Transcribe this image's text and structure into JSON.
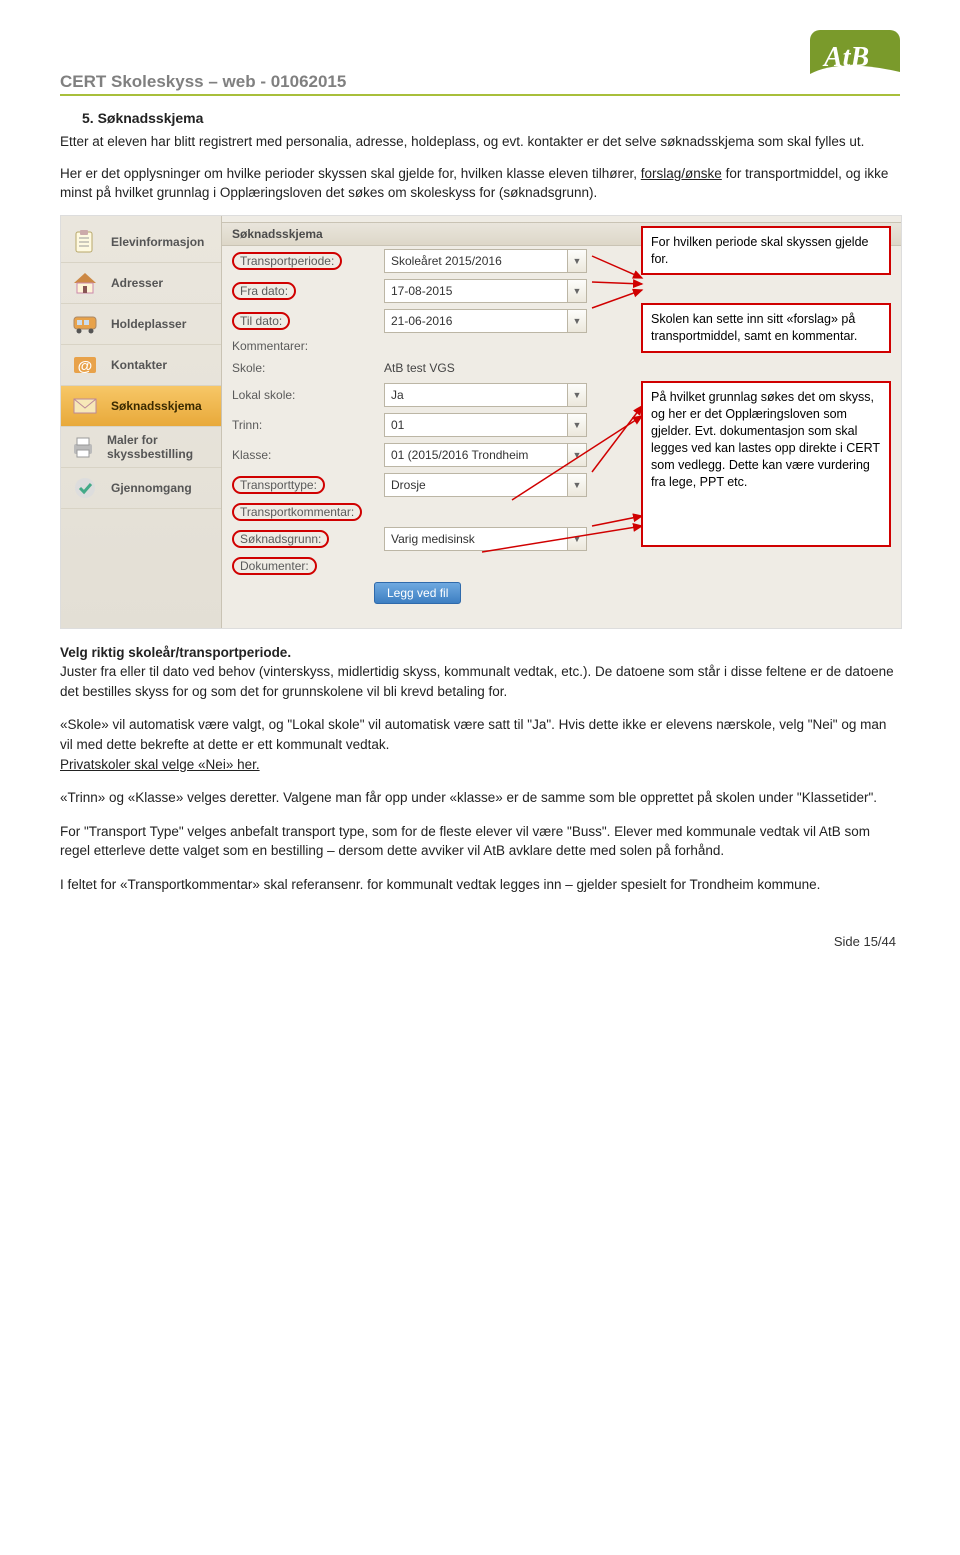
{
  "header": {
    "title": "CERT Skoleskyss – web - 01062015"
  },
  "logo": {
    "text": "AtB",
    "bg_top": "#7a9a2b",
    "bg_bottom": "#ffffff",
    "wave": "#a8bf3b"
  },
  "section": {
    "heading": "5.  Søknadsskjema"
  },
  "intro": {
    "p1": "Etter at eleven har blitt registrert med personalia, adresse, holdeplass, og evt. kontakter er det selve søknadsskjema som skal fylles ut.",
    "p2a": "Her er det opplysninger om hvilke perioder skyssen skal gjelde for, hvilken klasse eleven tilhører, ",
    "p2u": "forslag/ønske",
    "p2b": " for transportmiddel, og ikke minst på hvilket grunnlag i Opplæringsloven det søkes om skoleskyss for (søknadsgrunn)."
  },
  "sidebar": {
    "items": [
      {
        "label": "Elevinformasjon",
        "icon": "clipboard"
      },
      {
        "label": "Adresser",
        "icon": "house"
      },
      {
        "label": "Holdeplasser",
        "icon": "bus"
      },
      {
        "label": "Kontakter",
        "icon": "at"
      },
      {
        "label": "Søknadsskjema",
        "icon": "envelope",
        "active": true
      },
      {
        "label": "Maler for skyssbestilling",
        "icon": "printer"
      },
      {
        "label": "Gjennomgang",
        "icon": "check"
      }
    ]
  },
  "form": {
    "header": "Søknadsskjema",
    "rows": [
      {
        "label": "Transportperiode:",
        "value": "Skoleåret 2015/2016",
        "ring": true,
        "dropdown": true
      },
      {
        "label": "Fra dato:",
        "value": "17-08-2015",
        "ring": true,
        "dropdown": true
      },
      {
        "label": "Til dato:",
        "value": "21-06-2016",
        "ring": true,
        "dropdown": true
      },
      {
        "label": "Kommentarer:",
        "value": "",
        "static": true
      },
      {
        "label": "Skole:",
        "value": "AtB test VGS",
        "static": true
      },
      {
        "label": "Lokal skole:",
        "value": "Ja",
        "dropdown": true
      },
      {
        "label": "Trinn:",
        "value": "01",
        "dropdown": true
      },
      {
        "label": "Klasse:",
        "value": "01 (2015/2016 Trondheim",
        "dropdown": true
      },
      {
        "label": "Transporttype:",
        "value": "Drosje",
        "ring": true,
        "dropdown": true
      },
      {
        "label": "Transportkommentar:",
        "value": "",
        "ring": true,
        "static": true
      },
      {
        "label": "Søknadsgrunn:",
        "value": "Varig medisinsk",
        "ring": true,
        "dropdown": true
      },
      {
        "label": "Dokumenter:",
        "value": "",
        "ring": true,
        "static": true
      }
    ],
    "upload_button": "Legg ved fil"
  },
  "callouts": {
    "c1": "For hvilken periode skal skyssen gjelde for.",
    "c2": "Skolen kan sette inn sitt «forslag» på transportmiddel, samt en kommentar.",
    "c3": "På hvilket grunnlag søkes det om skyss, og her er det Opplæringsloven som gjelder. Evt. dokumentasjon som skal legges ved kan lastes opp direkte i CERT som vedlegg. Dette kan være vurdering fra lege, PPT etc."
  },
  "bottom": {
    "b1_bold": "Velg riktig skoleår/transportperiode.",
    "b1": "Juster fra eller til dato ved behov (vinterskyss, midlertidig skyss, kommunalt vedtak, etc.). De datoene som står i disse feltene er de datoene det bestilles skyss for og som det for grunnskolene vil bli krevd betaling for.",
    "b2": "«Skole» vil automatisk være valgt, og \"Lokal skole\" vil automatisk være satt til \"Ja\". Hvis dette ikke er elevens nærskole, velg \"Nei\" og man vil med dette bekrefte at dette er ett kommunalt vedtak.",
    "b2u": "Privatskoler skal velge «Nei» her.",
    "b3": "«Trinn» og «Klasse» velges deretter. Valgene man får opp under «klasse» er de samme som ble opprettet på skolen under \"Klassetider\".",
    "b4": "For \"Transport Type\" velges anbefalt transport type, som for de fleste elever vil være \"Buss\". Elever med kommunale vedtak vil AtB som regel etterleve dette valget som en bestilling – dersom dette avviker vil AtB avklare dette med solen på forhånd.",
    "b5": "I feltet for «Transportkommentar» skal referansenr. for kommunalt vedtak legges inn – gjelder spesielt for Trondheim kommune."
  },
  "footer": {
    "text": "Side 15/44"
  },
  "colors": {
    "ring": "#d00000",
    "accent_green": "#a8bf3b",
    "grey_text": "#808080"
  }
}
